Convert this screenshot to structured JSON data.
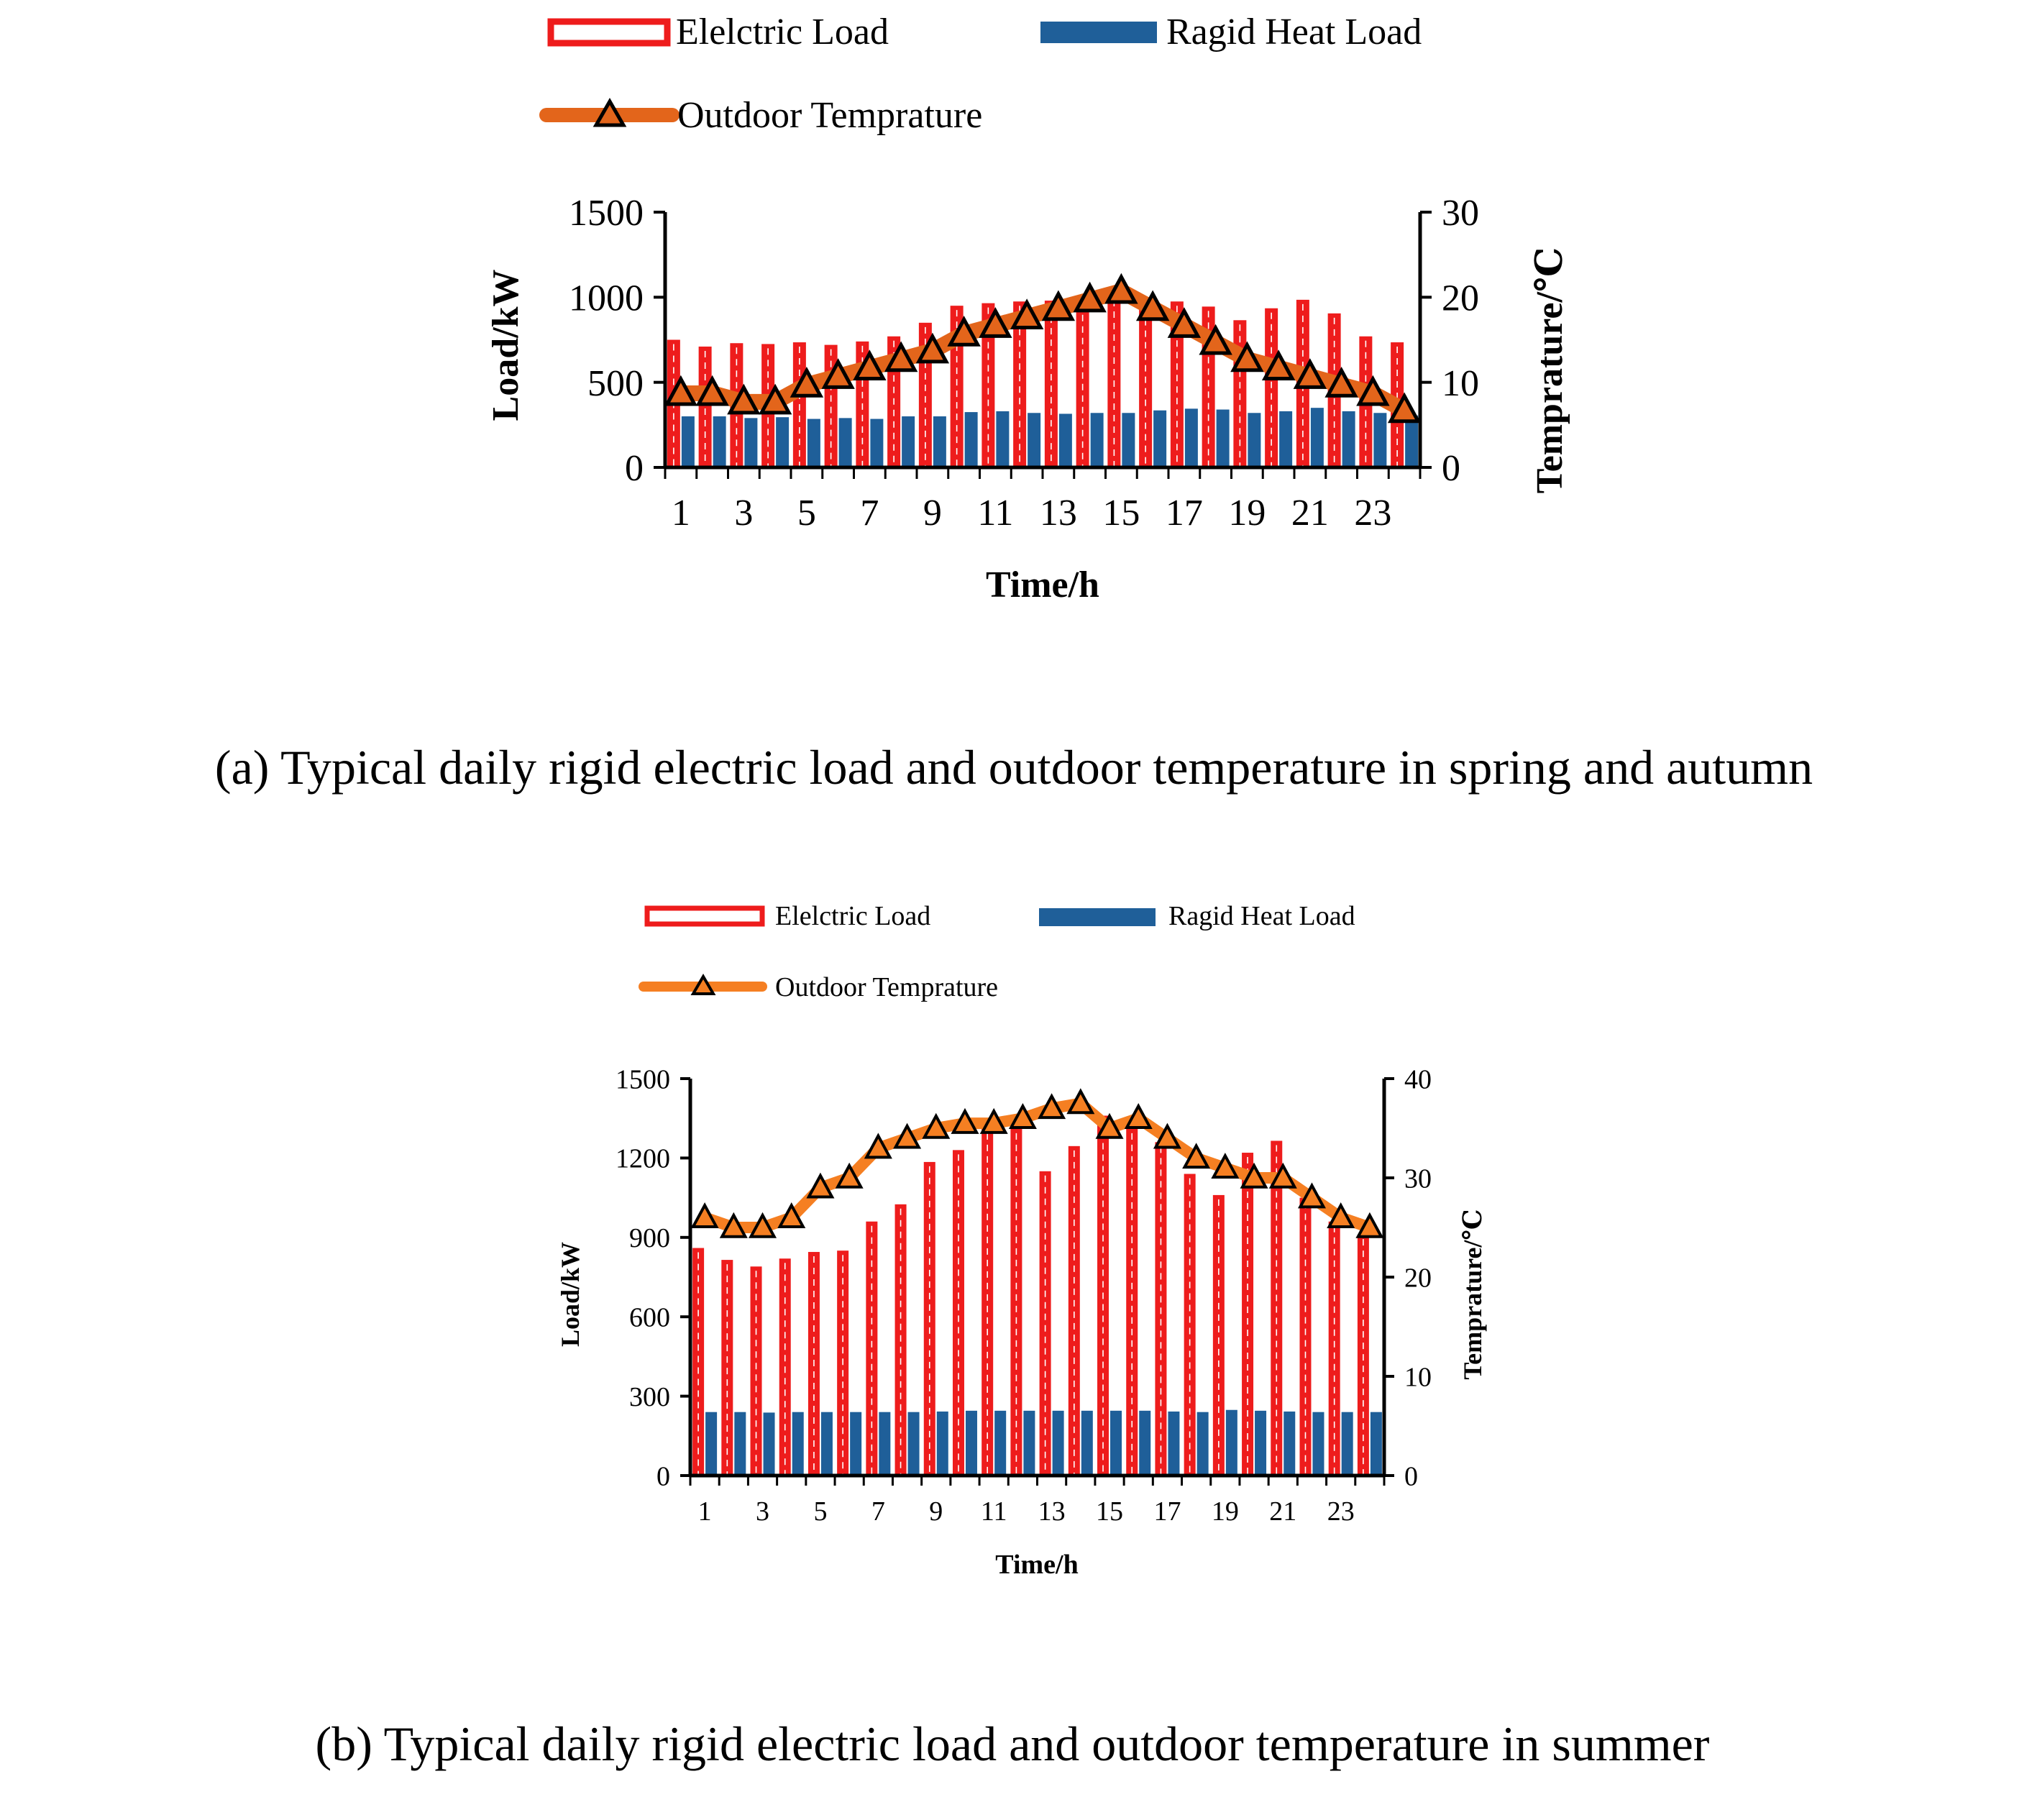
{
  "colors": {
    "electric": "#ee1c1c",
    "electric_dash": "#ffffff",
    "heat": "#1f5f99",
    "temp_line_a": "#e3651b",
    "temp_line_b": "#f57f22",
    "marker_fill_a": "#e3651b",
    "marker_fill_b": "#f57f22",
    "marker_stroke": "#000000",
    "axis": "#000000",
    "text": "#000000"
  },
  "chart_data": [
    {
      "type": "bar",
      "caption": "(a) Typical daily rigid electric load and outdoor temperature in spring and autumn",
      "xlabel": "Time/h",
      "ylabel": "Load/kW",
      "y2label": "Temprature/℃",
      "legend": {
        "electric": "Elelctric Load",
        "heat": "Ragid Heat Load",
        "temp": "Outdoor Temprature"
      },
      "categories": [
        1,
        2,
        3,
        4,
        5,
        6,
        7,
        8,
        9,
        10,
        11,
        12,
        13,
        14,
        15,
        16,
        17,
        18,
        19,
        20,
        21,
        22,
        23,
        24
      ],
      "x_tick_labels": [
        "1",
        "3",
        "5",
        "7",
        "9",
        "11",
        "13",
        "15",
        "17",
        "19",
        "21",
        "23"
      ],
      "ylim": [
        0,
        1500
      ],
      "y_ticks": [
        0,
        500,
        1000,
        1500
      ],
      "y_tick_labels": [
        "0",
        "500",
        "1000",
        "1500"
      ],
      "y2lim": [
        0,
        30
      ],
      "y2_ticks": [
        0,
        10,
        20,
        30
      ],
      "y2_tick_labels": [
        "0",
        "10",
        "20",
        "30"
      ],
      "series": [
        {
          "name": "Elelctric Load",
          "axis": "left",
          "kind": "bar",
          "values": [
            750,
            710,
            730,
            725,
            735,
            720,
            740,
            770,
            850,
            950,
            965,
            975,
            980,
            990,
            1010,
            965,
            975,
            945,
            865,
            935,
            985,
            905,
            770,
            735
          ]
        },
        {
          "name": "Ragid Heat Load",
          "axis": "left",
          "kind": "bar",
          "values": [
            300,
            300,
            290,
            295,
            285,
            290,
            285,
            300,
            300,
            325,
            330,
            320,
            315,
            320,
            320,
            335,
            345,
            340,
            320,
            330,
            350,
            330,
            320,
            305
          ]
        },
        {
          "name": "Outdoor Temprature",
          "axis": "right",
          "kind": "line",
          "values": [
            8.7,
            8.7,
            7.7,
            7.7,
            9.7,
            10.7,
            11.7,
            12.7,
            13.7,
            15.7,
            16.7,
            17.7,
            18.7,
            19.7,
            20.7,
            18.7,
            16.7,
            14.7,
            12.7,
            11.7,
            10.7,
            9.7,
            8.7,
            6.7
          ]
        }
      ]
    },
    {
      "type": "bar",
      "caption": "(b) Typical daily rigid electric load and outdoor temperature in summer",
      "xlabel": "Time/h",
      "ylabel": "Load/kW",
      "y2label": "Temprature/℃",
      "legend": {
        "electric": "Elelctric Load",
        "heat": "Ragid Heat Load",
        "temp": "Outdoor Temprature"
      },
      "categories": [
        1,
        2,
        3,
        4,
        5,
        6,
        7,
        8,
        9,
        10,
        11,
        12,
        13,
        14,
        15,
        16,
        17,
        18,
        19,
        20,
        21,
        22,
        23,
        24
      ],
      "x_tick_labels": [
        "1",
        "3",
        "5",
        "7",
        "9",
        "11",
        "13",
        "15",
        "17",
        "19",
        "21",
        "23"
      ],
      "ylim": [
        0,
        1500
      ],
      "y_ticks": [
        0,
        300,
        600,
        900,
        1200,
        1500
      ],
      "y_tick_labels": [
        "0",
        "300",
        "600",
        "900",
        "1200",
        "1500"
      ],
      "y2lim": [
        0,
        40
      ],
      "y2_ticks": [
        0,
        10,
        20,
        30,
        40
      ],
      "y2_tick_labels": [
        "0",
        "10",
        "20",
        "30",
        "40"
      ],
      "series": [
        {
          "name": "Elelctric Load",
          "axis": "left",
          "kind": "bar",
          "values": [
            860,
            815,
            790,
            820,
            845,
            850,
            960,
            1025,
            1185,
            1230,
            1310,
            1310,
            1150,
            1245,
            1360,
            1310,
            1260,
            1140,
            1060,
            1220,
            1265,
            1050,
            960,
            910
          ]
        },
        {
          "name": "Ragid Heat Load",
          "axis": "left",
          "kind": "bar",
          "values": [
            240,
            240,
            238,
            240,
            240,
            240,
            240,
            240,
            242,
            245,
            245,
            245,
            245,
            245,
            245,
            245,
            242,
            240,
            248,
            245,
            242,
            240,
            240,
            240
          ]
        },
        {
          "name": "Outdoor Temprature",
          "axis": "right",
          "kind": "line",
          "values": [
            26,
            25,
            25,
            26,
            29,
            30,
            33,
            34,
            35,
            35.5,
            35.5,
            36,
            37,
            37.5,
            35,
            36,
            34,
            32,
            31,
            30,
            30,
            28,
            26,
            25
          ]
        }
      ]
    }
  ]
}
